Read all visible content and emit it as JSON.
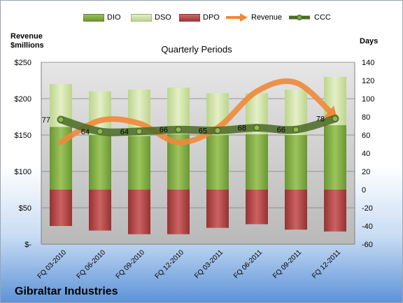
{
  "chart_data": {
    "type": "bar",
    "title": "Quarterly Periods",
    "company": "Gibraltar Industries",
    "left_axis": {
      "title_line1": "Revenue",
      "title_line2": "$millions",
      "ylim": [
        0,
        250
      ],
      "ticks": [
        "$-",
        "$50",
        "$100",
        "$150",
        "$200",
        "$250"
      ]
    },
    "right_axis": {
      "title": "Days",
      "ylim": [
        -60,
        140
      ],
      "ticks": [
        "-60",
        "-40",
        "-20",
        "0",
        "20",
        "40",
        "60",
        "80",
        "100",
        "120",
        "140"
      ]
    },
    "categories": [
      "FQ 03-2010",
      "FQ 06-2010",
      "FQ 09-2010",
      "FQ 12-2010",
      "FQ 03-2011",
      "FQ 06-2011",
      "FQ 09-2011",
      "FQ 12-2011"
    ],
    "legend": [
      "DIO",
      "DSO",
      "DPO",
      "Revenue",
      "CCC"
    ],
    "colors": {
      "DIO": "#7aa63c",
      "DSO": "#c9df98",
      "DPO": "#b34848",
      "Revenue": "#f0883a",
      "CCC": "#4a6a25"
    },
    "series": [
      {
        "name": "DIO",
        "axis": "Days",
        "values": [
          69,
          60,
          59,
          61,
          60,
          61,
          60,
          71
        ]
      },
      {
        "name": "DSO",
        "axis": "Days",
        "values": [
          47,
          48,
          51,
          51,
          46,
          45,
          50,
          53
        ]
      },
      {
        "name": "DPO",
        "axis": "Days",
        "values": [
          -40,
          -45,
          -49,
          -49,
          -42,
          -38,
          -44,
          -46
        ]
      },
      {
        "name": "Revenue",
        "axis": "$millions",
        "values": [
          140,
          170,
          166,
          140,
          160,
          210,
          222,
          175
        ]
      },
      {
        "name": "CCC",
        "axis": "Days",
        "values": [
          77,
          64,
          64,
          66,
          65,
          68,
          66,
          78
        ]
      }
    ],
    "ccc_labels": [
      "77",
      "64",
      "64",
      "66",
      "65",
      "68",
      "66",
      "78"
    ]
  }
}
